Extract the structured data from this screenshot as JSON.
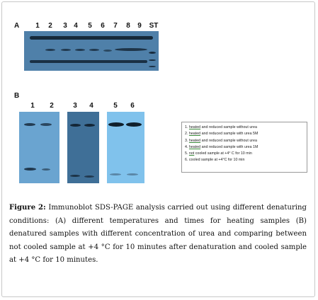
{
  "panel_a": {
    "label": "A",
    "lanes": [
      "1",
      "2",
      "3",
      "4",
      "5",
      "6",
      "7",
      "8",
      "9",
      "ST"
    ]
  },
  "panel_b": {
    "label": "B",
    "lanes": [
      "1",
      "2",
      "3",
      "4",
      "5",
      "6"
    ]
  },
  "legend": {
    "items": [
      {
        "num": "1.",
        "key": "heated",
        "rest": "and reduced sample without urea"
      },
      {
        "num": "2.",
        "key": "heated",
        "rest": "and reduced sample with urea 5M"
      },
      {
        "num": "3.",
        "key": "heated",
        "rest": "and reduced sample without urea"
      },
      {
        "num": "4.",
        "key": "heated",
        "rest": "and reduced sample with urea 1M"
      },
      {
        "num": "5.",
        "key": "not",
        "rest": "cooled sample at +4° C for 10 min"
      },
      {
        "num": "6.",
        "key": "",
        "rest": "cooled sample at +4°C for 10 min"
      }
    ]
  },
  "caption": {
    "label": "Figure 2:",
    "text": "Immunoblot SDS-PAGE analysis carried out using different denaturing conditions: (A) different temperatures and times for heating samples (B) denatured samples with different concentration of urea and comparing between not cooled sample at +4 °C for 10 minutes after denaturation and cooled sample at +4 °C for 10 minutes."
  },
  "colors": {
    "blot_a": "#4e7fa8",
    "blot_b1": "#6aa3cf",
    "blot_b2": "#3f6f96",
    "blot_b3": "#7fc0ea",
    "band": "#142838"
  }
}
